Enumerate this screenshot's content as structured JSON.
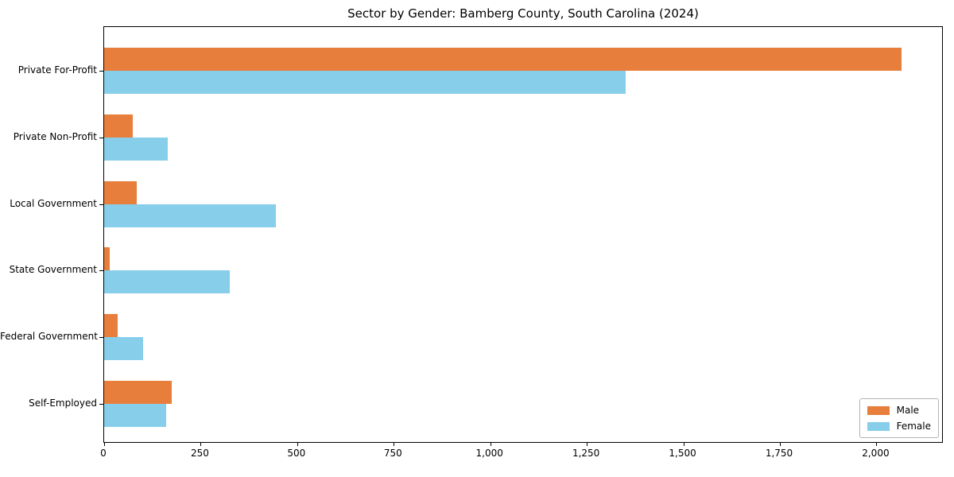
{
  "title": "Sector by Gender: Bamberg County, South Carolina (2024)",
  "legend": {
    "position": "lower right",
    "items": [
      {
        "label": "Male",
        "color": "#e87e3b"
      },
      {
        "label": "Female",
        "color": "#87ceeb"
      }
    ]
  },
  "chart_data": {
    "type": "bar",
    "orientation": "horizontal",
    "title": "Sector by Gender: Bamberg County, South Carolina (2024)",
    "categories": [
      "Private For-Profit",
      "Private Non-Profit",
      "Local Government",
      "State Government",
      "Federal Government",
      "Self-Employed"
    ],
    "series": [
      {
        "name": "Male",
        "color": "#e87e3b",
        "values": [
          2065,
          75,
          85,
          15,
          35,
          175
        ]
      },
      {
        "name": "Female",
        "color": "#87ceeb",
        "values": [
          1350,
          165,
          445,
          325,
          100,
          160
        ]
      }
    ],
    "xlabel": "",
    "ylabel": "",
    "xlim": [
      0,
      2170
    ],
    "xticks": [
      0,
      250,
      500,
      750,
      1000,
      1250,
      1500,
      1750,
      2000
    ],
    "xtick_labels": [
      "0",
      "250",
      "500",
      "750",
      "1,000",
      "1,250",
      "1,500",
      "1,750",
      "2,000"
    ],
    "grid": false,
    "frame": "full-box",
    "legend_position": "lower right",
    "axis_color": "#000000",
    "background_color": "#ffffff"
  }
}
